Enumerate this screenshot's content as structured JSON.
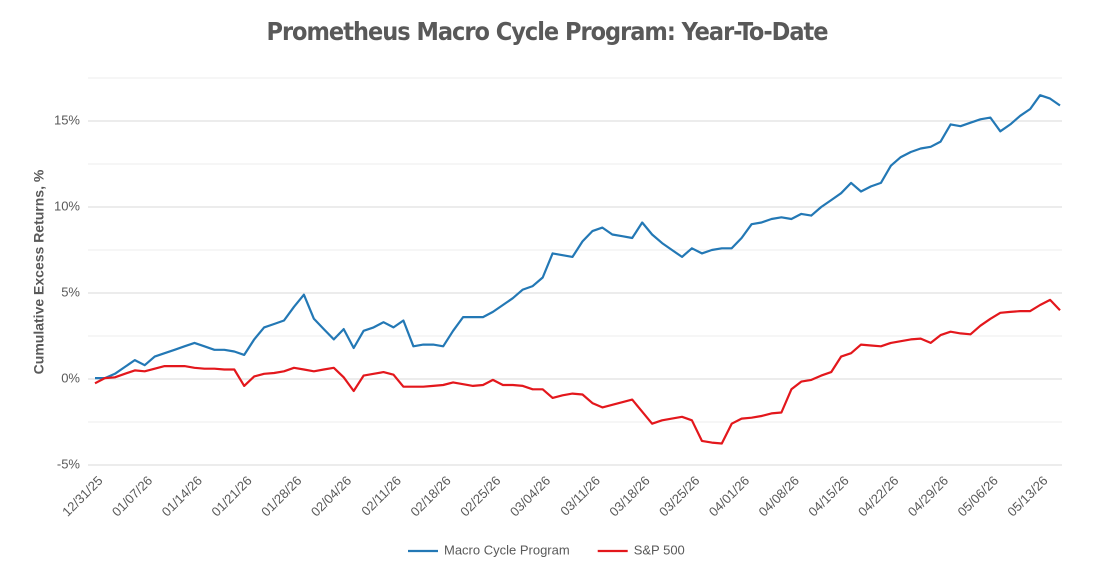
{
  "chart_data": {
    "type": "line",
    "title": "Prometheus Macro Cycle Program: Year-To-Date",
    "y_label": "Cumulative Excess Returns, %",
    "categories": [
      "12/31/25",
      null,
      null,
      null,
      null,
      "01/07/26",
      null,
      null,
      null,
      null,
      "01/14/26",
      null,
      null,
      null,
      null,
      "01/21/26",
      null,
      null,
      null,
      null,
      "01/28/26",
      null,
      null,
      null,
      null,
      "02/04/26",
      null,
      null,
      null,
      null,
      "02/11/26",
      null,
      null,
      null,
      null,
      "02/18/26",
      null,
      null,
      null,
      null,
      "02/25/26",
      null,
      null,
      null,
      null,
      "03/04/26",
      null,
      null,
      null,
      null,
      "03/11/26",
      null,
      null,
      null,
      null,
      "03/18/26",
      null,
      null,
      null,
      null,
      "03/25/26",
      null,
      null,
      null,
      null,
      "04/01/26",
      null,
      null,
      null,
      null,
      "04/08/26",
      null,
      null,
      null,
      null,
      "04/15/26",
      null,
      null,
      null,
      null,
      "04/22/26",
      null,
      null,
      null,
      null,
      "04/29/26",
      null,
      null,
      null,
      null,
      "05/06/26",
      null,
      null,
      null,
      null,
      "05/13/26",
      null,
      null
    ],
    "series": [
      {
        "name": "Macro Cycle Program",
        "color": "#2378b5",
        "values": [
          0.05,
          0.05,
          0.3,
          0.7,
          1.1,
          0.8,
          1.3,
          1.5,
          1.7,
          1.9,
          2.1,
          1.9,
          1.7,
          1.7,
          1.6,
          1.4,
          2.3,
          3.0,
          3.2,
          3.4,
          4.2,
          4.9,
          3.5,
          2.9,
          2.3,
          2.9,
          1.8,
          2.8,
          3.0,
          3.3,
          3.0,
          3.4,
          1.9,
          2.0,
          2.0,
          1.9,
          2.8,
          3.6,
          3.6,
          3.6,
          3.9,
          4.3,
          4.7,
          5.2,
          5.4,
          5.9,
          7.3,
          7.2,
          7.1,
          8.0,
          8.6,
          8.8,
          8.4,
          8.3,
          8.2,
          9.1,
          8.4,
          7.9,
          7.5,
          7.1,
          7.6,
          7.3,
          7.5,
          7.6,
          7.6,
          8.2,
          9.0,
          9.1,
          9.3,
          9.4,
          9.3,
          9.6,
          9.5,
          10.0,
          10.4,
          10.8,
          11.4,
          10.9,
          11.2,
          11.4,
          12.4,
          12.9,
          13.2,
          13.4,
          13.5,
          13.8,
          14.8,
          14.7,
          14.9,
          15.1,
          15.2,
          14.4,
          14.8,
          15.3,
          15.7,
          16.5,
          16.3,
          15.9
        ]
      },
      {
        "name": "S&P 500",
        "color": "#e3171c",
        "values": [
          -0.25,
          0.05,
          0.1,
          0.3,
          0.5,
          0.45,
          0.6,
          0.75,
          0.75,
          0.75,
          0.65,
          0.6,
          0.6,
          0.55,
          0.55,
          -0.4,
          0.15,
          0.3,
          0.35,
          0.45,
          0.65,
          0.55,
          0.45,
          0.55,
          0.65,
          0.1,
          -0.7,
          0.2,
          0.3,
          0.4,
          0.25,
          -0.45,
          -0.45,
          -0.45,
          -0.4,
          -0.35,
          -0.2,
          -0.3,
          -0.4,
          -0.35,
          -0.05,
          -0.35,
          -0.35,
          -0.4,
          -0.6,
          -0.6,
          -1.1,
          -0.95,
          -0.85,
          -0.9,
          -1.4,
          -1.65,
          -1.5,
          -1.35,
          -1.2,
          -1.9,
          -2.6,
          -2.4,
          -2.3,
          -2.2,
          -2.4,
          -3.6,
          -3.7,
          -3.75,
          -2.6,
          -2.3,
          -2.25,
          -2.15,
          -2.0,
          -1.95,
          -0.6,
          -0.15,
          -0.05,
          0.2,
          0.4,
          1.3,
          1.5,
          2.0,
          1.95,
          1.9,
          2.1,
          2.2,
          2.3,
          2.35,
          2.1,
          2.55,
          2.75,
          2.65,
          2.6,
          3.1,
          3.5,
          3.85,
          3.9,
          3.95,
          3.95,
          4.3,
          4.6,
          4.0
        ]
      }
    ],
    "ylim": [
      -5,
      17.5
    ],
    "yticks": [
      {
        "value": -5,
        "label": "-5%"
      },
      {
        "value": 0,
        "label": "0%"
      },
      {
        "value": 5,
        "label": "5%"
      },
      {
        "value": 10,
        "label": "10%"
      },
      {
        "value": 15,
        "label": "15%"
      }
    ],
    "minor_gridlines": [
      -2.5,
      2.5,
      7.5,
      12.5,
      17.5
    ],
    "grid": true,
    "legend": "bottom"
  }
}
